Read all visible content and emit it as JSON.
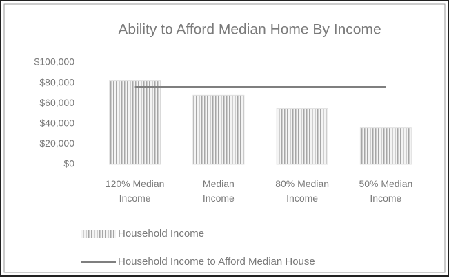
{
  "chart_data": {
    "type": "bar",
    "title": "Ability to Afford Median Home By Income",
    "categories": [
      "120% Median Income",
      "Median Income",
      "80% Median Income",
      "50% Median Income"
    ],
    "series": [
      {
        "name": "Household Income",
        "type": "bar",
        "color": "#a6a6a6",
        "values": [
          82000,
          68000,
          55000,
          36000
        ]
      },
      {
        "name": "Household Income to Afford Median House",
        "type": "line",
        "color": "#7f7f7f",
        "values": [
          76000,
          76000,
          76000,
          76000
        ]
      }
    ],
    "ylim": [
      0,
      100000
    ],
    "yticks": [
      {
        "value": 0,
        "label": "$0"
      },
      {
        "value": 20000,
        "label": "$20,000"
      },
      {
        "value": 40000,
        "label": "$40,000"
      },
      {
        "value": 60000,
        "label": "$60,000"
      },
      {
        "value": 80000,
        "label": "$80,000"
      },
      {
        "value": 100000,
        "label": "$100,000"
      }
    ],
    "grid": false,
    "legend": "bottom"
  }
}
